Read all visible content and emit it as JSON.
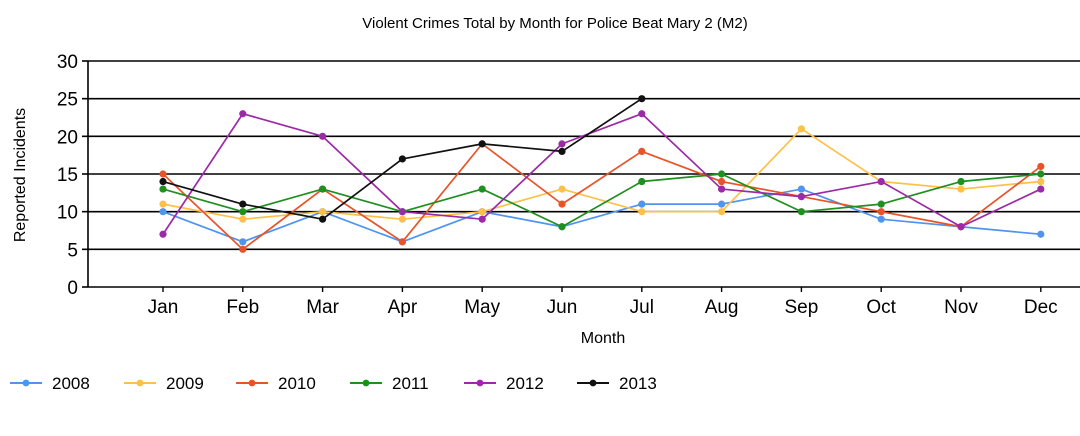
{
  "chart_data": {
    "type": "line",
    "title": "Violent Crimes Total by Month for Police Beat Mary 2 (M2)",
    "xlabel": "Month",
    "ylabel": "Reported Incidents",
    "ylim": [
      0,
      30
    ],
    "yticks": [
      0,
      5,
      10,
      15,
      20,
      25,
      30
    ],
    "grid": "horizontal",
    "legend_position": "bottom-left",
    "categories": [
      "Jan",
      "Feb",
      "Mar",
      "Apr",
      "May",
      "Jun",
      "Jul",
      "Aug",
      "Sep",
      "Oct",
      "Nov",
      "Dec"
    ],
    "series": [
      {
        "name": "2008",
        "color": "#4f94ef",
        "values": [
          10,
          6,
          10,
          6,
          10,
          8,
          11,
          11,
          13,
          9,
          8,
          7
        ]
      },
      {
        "name": "2009",
        "color": "#ffc04a",
        "values": [
          11,
          9,
          10,
          9,
          10,
          13,
          10,
          10,
          21,
          14,
          13,
          14
        ]
      },
      {
        "name": "2010",
        "color": "#e8532a",
        "values": [
          15,
          5,
          13,
          6,
          19,
          11,
          18,
          14,
          12,
          10,
          8,
          16
        ]
      },
      {
        "name": "2011",
        "color": "#1f8f1f",
        "values": [
          13,
          10,
          13,
          10,
          13,
          8,
          14,
          15,
          10,
          11,
          14,
          15
        ]
      },
      {
        "name": "2012",
        "color": "#9c2aa6",
        "values": [
          7,
          23,
          20,
          10,
          9,
          19,
          23,
          13,
          12,
          14,
          8,
          13
        ]
      },
      {
        "name": "2013",
        "color": "#111111",
        "values": [
          14,
          11,
          9,
          17,
          19,
          18,
          25,
          null,
          null,
          null,
          null,
          null
        ]
      }
    ]
  }
}
